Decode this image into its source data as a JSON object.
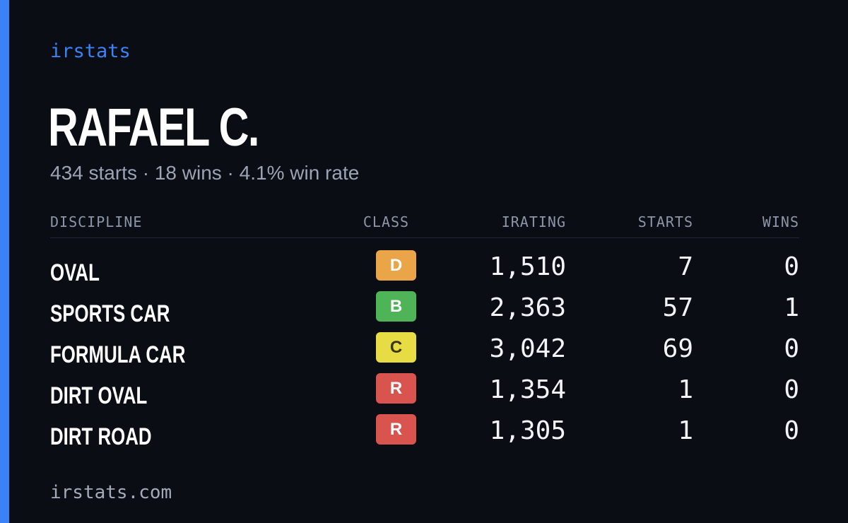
{
  "colors": {
    "accent": "#3b82f6",
    "background": "#0a0d14",
    "class_D": "#e9a548",
    "class_B": "#4fb458",
    "class_C": "#e8dc45",
    "class_R": "#d9534f"
  },
  "brand": "irstats",
  "player": {
    "name": "RAFAEL C.",
    "summary": "434 starts · 18 wins · 4.1% win rate"
  },
  "table": {
    "headers": {
      "discipline": "DISCIPLINE",
      "class": "CLASS",
      "irating": "IRATING",
      "starts": "STARTS",
      "wins": "WINS"
    },
    "rows": [
      {
        "discipline": "OVAL",
        "class": "D",
        "irating": "1,510",
        "starts": "7",
        "wins": "0"
      },
      {
        "discipline": "SPORTS CAR",
        "class": "B",
        "irating": "2,363",
        "starts": "57",
        "wins": "1"
      },
      {
        "discipline": "FORMULA CAR",
        "class": "C",
        "irating": "3,042",
        "starts": "69",
        "wins": "0"
      },
      {
        "discipline": "DIRT OVAL",
        "class": "R",
        "irating": "1,354",
        "starts": "1",
        "wins": "0"
      },
      {
        "discipline": "DIRT ROAD",
        "class": "R",
        "irating": "1,305",
        "starts": "1",
        "wins": "0"
      }
    ]
  },
  "footer": "irstats.com"
}
